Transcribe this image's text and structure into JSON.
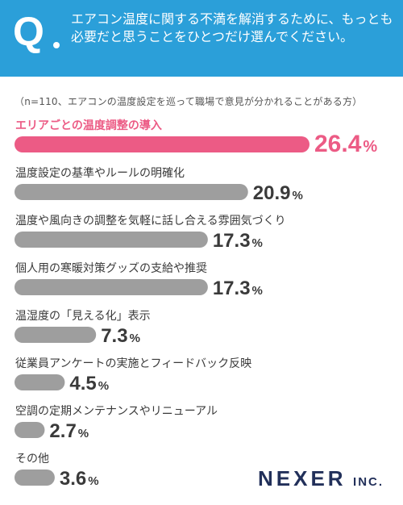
{
  "header": {
    "q_label": "Q",
    "question": "エアコン温度に関する不満を解消するために、もっとも必要だと思うことをひとつだけ選んでください。"
  },
  "note": "（n=110、エアコンの温度設定を巡って職場で意見が分かれることがある方）",
  "brand": {
    "name": "NEXER",
    "suffix": "INC."
  },
  "colors": {
    "header": "#2b9fd9",
    "highlight": "#ec5b85",
    "bar": "#9e9e9e",
    "brand": "#22305a"
  },
  "chart_data": {
    "type": "bar",
    "orientation": "horizontal",
    "unit": "%",
    "categories": [
      "エリアごとの温度調整の導入",
      "温度設定の基準やルールの明確化",
      "温度や風向きの調整を気軽に話し合える雰囲気づくり",
      "個人用の寒暖対策グッズの支給や推奨",
      "温湿度の「見える化」表示",
      "従業員アンケートの実施とフィードバック反映",
      "空調の定期メンテナンスやリニューアル",
      "その他"
    ],
    "values": [
      26.4,
      20.9,
      17.3,
      17.3,
      7.3,
      4.5,
      2.7,
      3.6
    ],
    "labels": [
      "26.4",
      "20.9",
      "17.3",
      "17.3",
      "7.3",
      "4.5",
      "2.7",
      "3.6"
    ],
    "highlight_index": 0
  }
}
